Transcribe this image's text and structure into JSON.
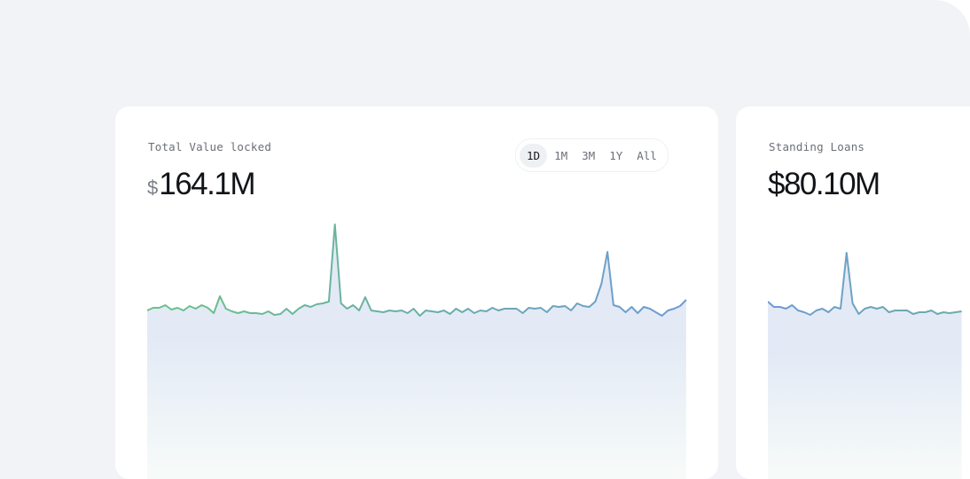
{
  "cards": [
    {
      "label": "Total Value locked",
      "currency": "$",
      "value": "164.1M",
      "ranges": [
        "1D",
        "1M",
        "3M",
        "1Y",
        "All"
      ],
      "selected_range": "1D"
    },
    {
      "label": "Standing Loans",
      "value": "$80.10M"
    }
  ],
  "chart_data": [
    {
      "type": "area",
      "axes_visible": false,
      "grid": false,
      "line_colors": [
        "#6cc28a",
        "#6aaea6",
        "#6f9ad6"
      ],
      "fill_colors": [
        "#e3eaf6",
        "#f7fbf8"
      ],
      "values": [
        20,
        23,
        23,
        26,
        21,
        23,
        20,
        25,
        22,
        26,
        23,
        17,
        36,
        22,
        19,
        17,
        19,
        17,
        17,
        16,
        19,
        15,
        16,
        22,
        16,
        22,
        26,
        24,
        27,
        28,
        30,
        117,
        28,
        22,
        26,
        20,
        35,
        20,
        19,
        18,
        20,
        19,
        20,
        17,
        22,
        14,
        20,
        19,
        18,
        20,
        16,
        22,
        18,
        22,
        17,
        20,
        19,
        23,
        20,
        22,
        22,
        22,
        17,
        23,
        22,
        23,
        18,
        25,
        24,
        25,
        20,
        28,
        25,
        24,
        30,
        50,
        86,
        26,
        24,
        18,
        24,
        17,
        24,
        22,
        18,
        14,
        20,
        22,
        25,
        32
      ]
    },
    {
      "type": "area",
      "axes_visible": false,
      "grid": false,
      "line_colors": [
        "#6f9ad6",
        "#6aaea6"
      ],
      "fill_colors": [
        "#e3eaf6",
        "#f7fbf8"
      ],
      "values": [
        30,
        24,
        24,
        22,
        26,
        20,
        18,
        15,
        20,
        22,
        18,
        24,
        22,
        85,
        28,
        16,
        22,
        24,
        22,
        24,
        18,
        20,
        20,
        20,
        16,
        18,
        18,
        20,
        16,
        18,
        17,
        18,
        19
      ]
    }
  ]
}
